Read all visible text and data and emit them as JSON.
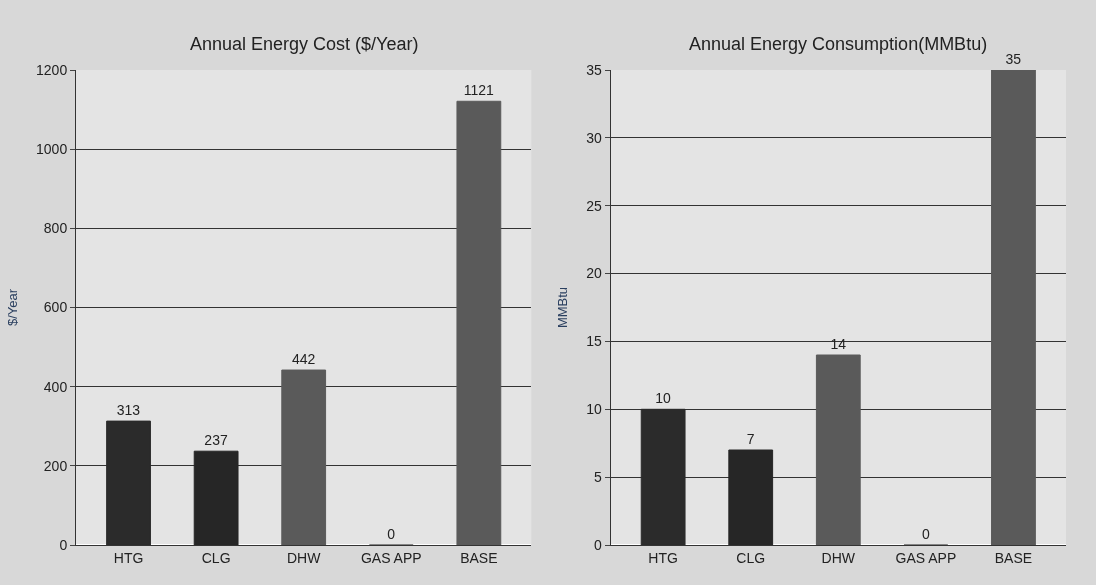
{
  "chart_data": [
    {
      "type": "bar",
      "title": "Annual Energy Cost ($/Year)",
      "ylabel": "$/Year",
      "categories": [
        "HTG",
        "CLG",
        "DHW",
        "GAS APP",
        "BASE"
      ],
      "values": [
        313,
        237,
        442,
        0,
        1121
      ],
      "colors": [
        "#2b2b2b",
        "#262626",
        "#5a5a5a",
        "#5a5a5a",
        "#5a5a5a"
      ],
      "ylim": [
        0,
        1200
      ],
      "yticks": [
        0,
        200,
        400,
        600,
        800,
        1000,
        1200
      ],
      "grid": "y",
      "data_labels": true
    },
    {
      "type": "bar",
      "title": "Annual Energy Consumption(MMBtu)",
      "ylabel": "MMBtu",
      "categories": [
        "HTG",
        "CLG",
        "DHW",
        "GAS APP",
        "BASE"
      ],
      "values": [
        10,
        7,
        14,
        0,
        35
      ],
      "colors": [
        "#2b2b2b",
        "#262626",
        "#5a5a5a",
        "#5a5a5a",
        "#5a5a5a"
      ],
      "ylim": [
        0,
        35
      ],
      "yticks": [
        0,
        5,
        10,
        15,
        20,
        25,
        30,
        35
      ],
      "grid": "y",
      "data_labels": true
    }
  ]
}
